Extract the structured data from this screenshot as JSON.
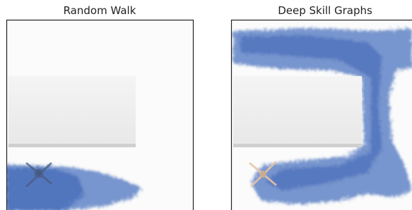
{
  "panels": [
    {
      "title": "Random Walk"
    },
    {
      "title": "Deep Skill Graphs"
    }
  ]
}
